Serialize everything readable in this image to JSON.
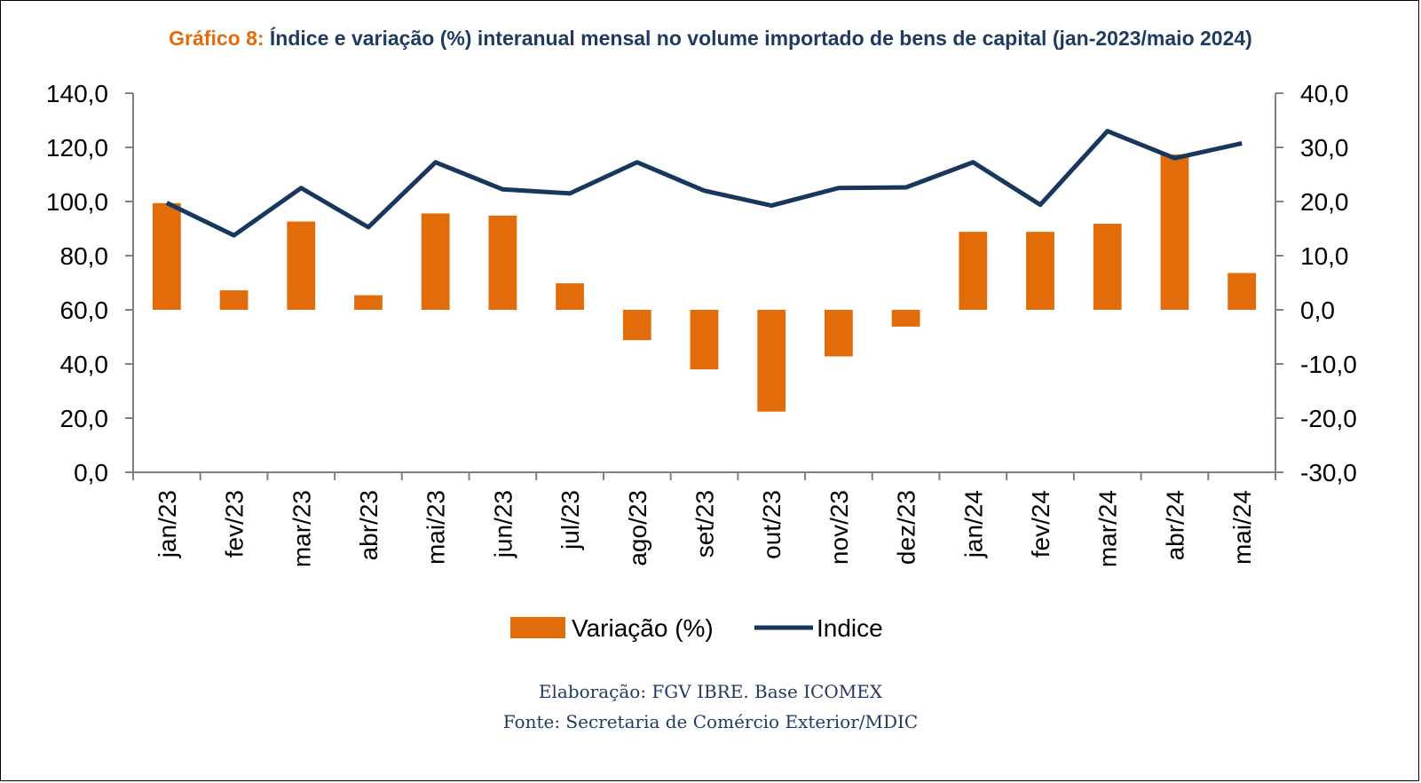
{
  "title_prefix": "Gráfico 8:",
  "title_main": "Índice e variação (%) interanual mensal no volume importado de bens de capital (jan-2023/maio 2024)",
  "credits": {
    "line1": "Elaboração: FGV IBRE. Base ICOMEX",
    "line2": "Fonte: Secretaria de Comércio Exterior/MDIC"
  },
  "colors": {
    "bar": "#e36c0a",
    "line": "#17375e",
    "axis": "#808080"
  },
  "chart_data": {
    "type": "bar",
    "categories": [
      "jan/23",
      "fev/23",
      "mar/23",
      "abr/23",
      "mai/23",
      "jun/23",
      "jul/23",
      "ago/23",
      "set/23",
      "out/23",
      "nov/23",
      "dez/23",
      "jan/24",
      "fev/24",
      "mar/24",
      "abr/24",
      "mai/24"
    ],
    "series": [
      {
        "name": "Variação (%)",
        "type": "bar",
        "axis": "right",
        "values": [
          19.7,
          3.6,
          16.3,
          2.7,
          17.8,
          17.4,
          4.9,
          -5.6,
          -11.0,
          -18.8,
          -8.6,
          -3.1,
          14.4,
          14.4,
          15.9,
          28.7,
          6.8
        ]
      },
      {
        "name": "Indice",
        "type": "line",
        "axis": "left",
        "values": [
          99.5,
          87.5,
          105.0,
          90.5,
          114.5,
          104.5,
          103.0,
          114.5,
          104.0,
          98.5,
          105.0,
          105.2,
          114.5,
          98.8,
          126.0,
          116.0,
          121.5
        ]
      }
    ],
    "y_left": {
      "min": 0,
      "max": 140,
      "step": 20,
      "ticks": [
        "0,0",
        "20,0",
        "40,0",
        "60,0",
        "80,0",
        "100,0",
        "120,0",
        "140,0"
      ]
    },
    "y_right": {
      "min": -30,
      "max": 40,
      "step": 10,
      "ticks": [
        "-30,0",
        "-20,0",
        "-10,0",
        "0,0",
        "10,0",
        "20,0",
        "30,0",
        "40,0"
      ]
    },
    "legend_position": "bottom",
    "grid": false
  }
}
